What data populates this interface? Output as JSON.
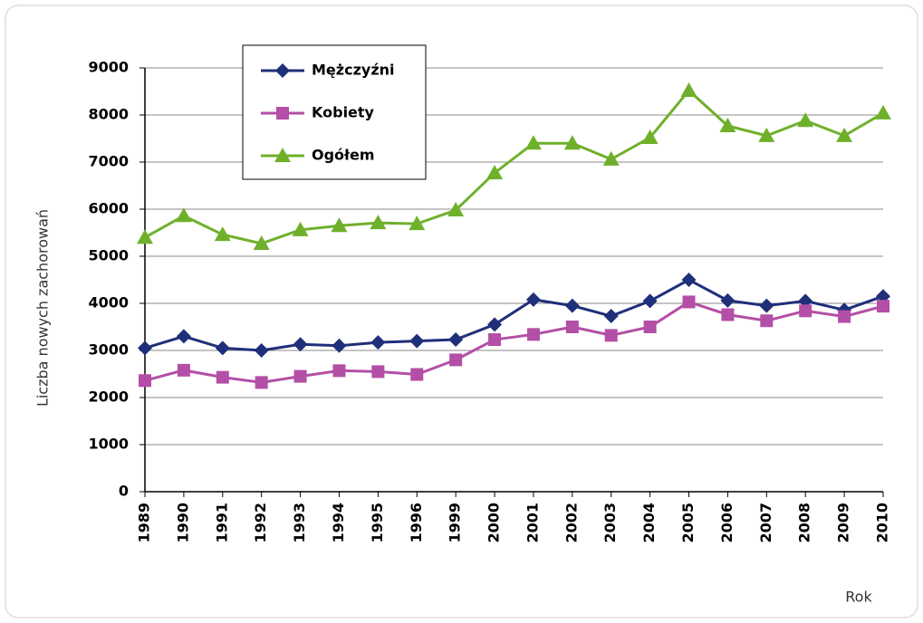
{
  "chart_data": {
    "type": "line",
    "ylabel": "Liczba nowych zachorowań",
    "xlabel": "Rok",
    "categories": [
      "1989",
      "1990",
      "1991",
      "1992",
      "1993",
      "1994",
      "1995",
      "1996",
      "1999",
      "2000",
      "2001",
      "2002",
      "2003",
      "2004",
      "2005",
      "2006",
      "2007",
      "2008",
      "2009",
      "2010"
    ],
    "series": [
      {
        "name": "Mężczyźni",
        "color": "#1f2f7a",
        "marker": "diamond",
        "values": [
          3050,
          3300,
          3050,
          3000,
          3130,
          3100,
          3170,
          3200,
          3230,
          3550,
          4080,
          3950,
          3730,
          4050,
          4500,
          4060,
          3950,
          4050,
          3860,
          4150
        ]
      },
      {
        "name": "Kobiety",
        "color": "#b34fa6",
        "marker": "square",
        "values": [
          2360,
          2580,
          2430,
          2320,
          2450,
          2570,
          2550,
          2490,
          2800,
          3230,
          3340,
          3500,
          3320,
          3500,
          4030,
          3760,
          3630,
          3840,
          3720,
          3940
        ]
      },
      {
        "name": "Ogółem",
        "color": "#6fb02b",
        "marker": "triangle",
        "values": [
          5400,
          5860,
          5460,
          5270,
          5560,
          5650,
          5710,
          5690,
          5980,
          6770,
          7400,
          7400,
          7060,
          7520,
          8520,
          7770,
          7560,
          7880,
          7560,
          8040
        ]
      }
    ],
    "ylim": [
      0,
      9000
    ],
    "yticks": [
      0,
      1000,
      2000,
      3000,
      4000,
      5000,
      6000,
      7000,
      8000,
      9000
    ],
    "grid": true,
    "legend": "top-left"
  }
}
